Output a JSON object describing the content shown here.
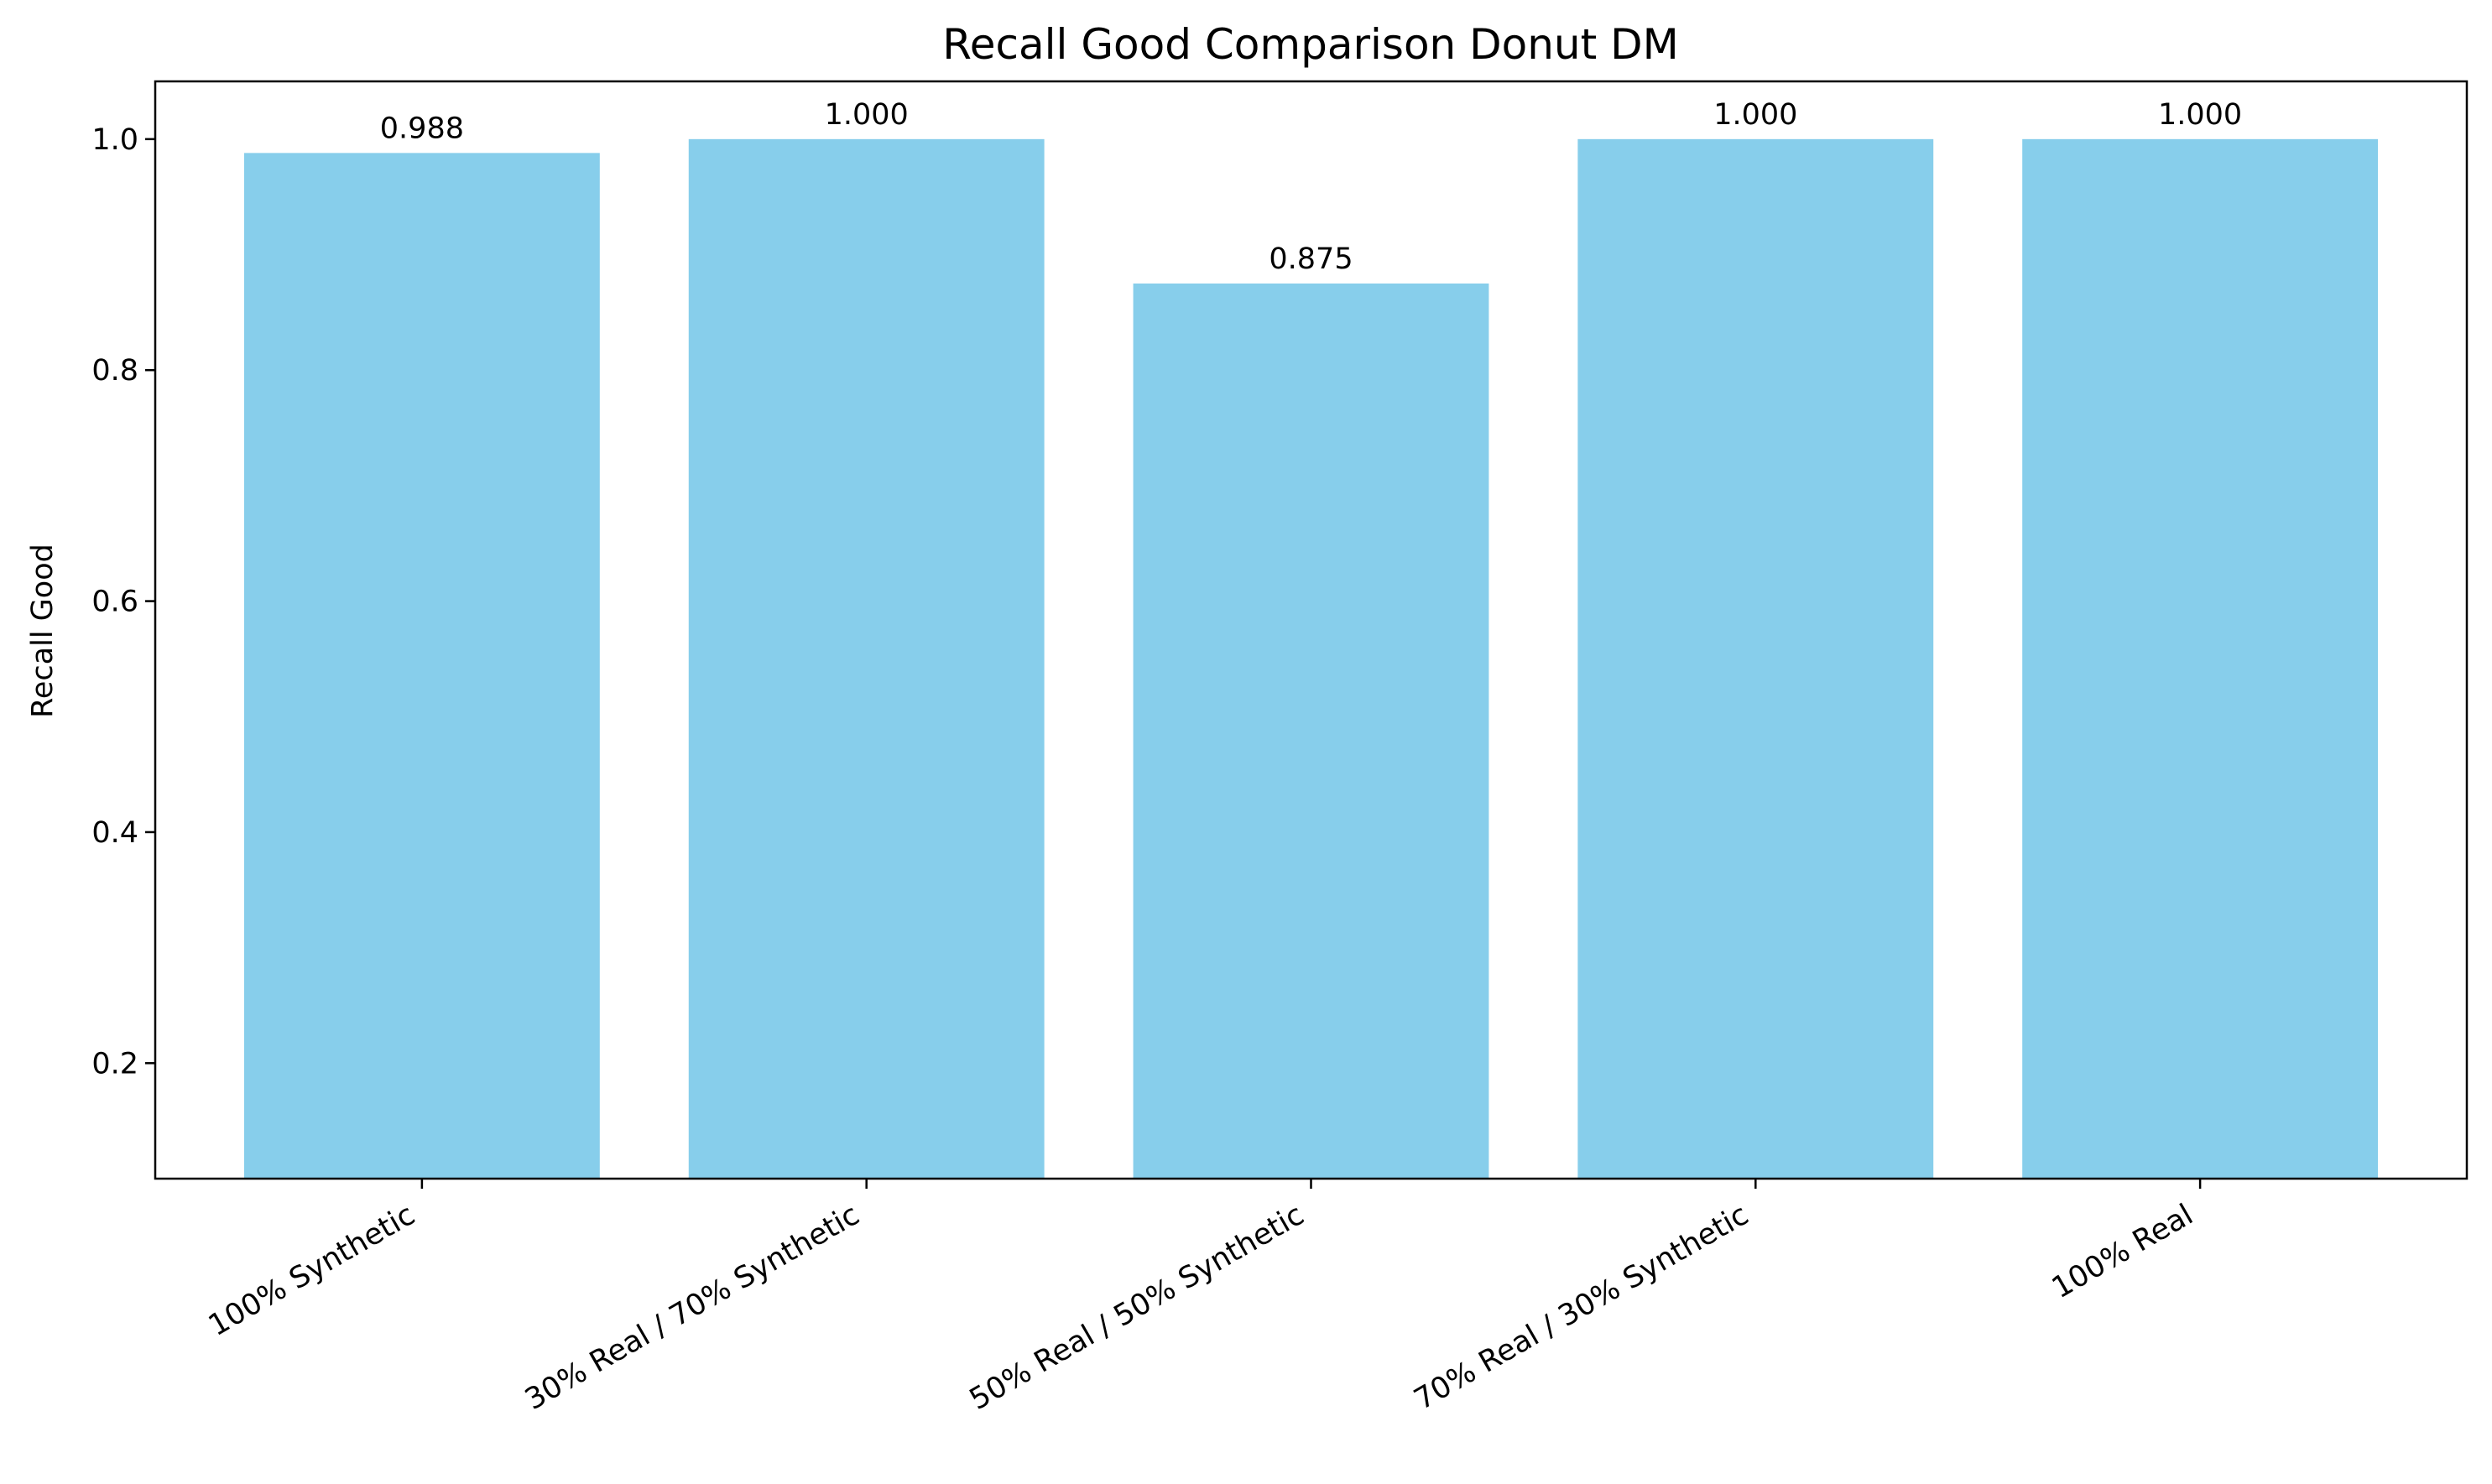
{
  "chart_data": {
    "type": "bar",
    "title": "Recall Good Comparison Donut DM",
    "xlabel": "",
    "ylabel": "Recall Good",
    "categories": [
      "100% Synthetic",
      "30% Real / 70% Synthetic",
      "50% Real / 50% Synthetic",
      "70% Real / 30% Synthetic",
      "100% Real"
    ],
    "values": [
      0.988,
      1.0,
      0.875,
      1.0,
      1.0
    ],
    "data_labels": [
      "0.988",
      "1.000",
      "0.875",
      "1.000",
      "1.000"
    ],
    "ylim": [
      0.1,
      1.05
    ],
    "yticks": [
      0.2,
      0.4,
      0.6,
      0.8,
      1.0
    ],
    "ytick_labels": [
      "0.2",
      "0.4",
      "0.6",
      "0.8",
      "1.0"
    ],
    "grid": false,
    "bar_color": "#87CEEB"
  }
}
